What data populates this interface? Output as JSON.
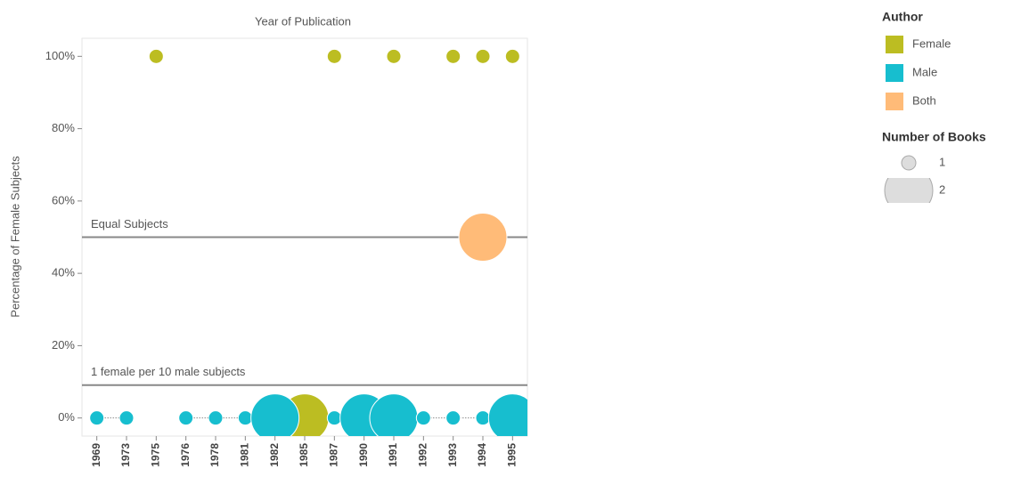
{
  "chart_data": {
    "type": "scatter",
    "title": "Year of Publication",
    "y_label": "Percentage of Female Subjects",
    "categories": [
      "1969",
      "1973",
      "1975",
      "1976",
      "1978",
      "1981",
      "1982",
      "1985",
      "1987",
      "1990",
      "1991",
      "1992",
      "1993",
      "1994",
      "1995"
    ],
    "series": [
      {
        "name": "Female",
        "color": "#bcbd22",
        "values": [
          null,
          null,
          100,
          null,
          null,
          null,
          null,
          0,
          100,
          null,
          100,
          null,
          100,
          100,
          100
        ],
        "sizes": [
          null,
          null,
          1,
          null,
          null,
          null,
          null,
          2,
          1,
          null,
          1,
          null,
          1,
          1,
          1
        ]
      },
      {
        "name": "Male",
        "color": "#17becf",
        "line": "dotted",
        "values": [
          0,
          0,
          null,
          0,
          0,
          0,
          0,
          null,
          0,
          0,
          0,
          0,
          0,
          0,
          0
        ],
        "sizes": [
          1,
          1,
          null,
          1,
          1,
          1,
          2,
          null,
          1,
          2,
          2,
          1,
          1,
          1,
          2
        ]
      },
      {
        "name": "Both",
        "color": "#ffbb78",
        "values": [
          null,
          null,
          null,
          null,
          null,
          null,
          null,
          null,
          null,
          null,
          null,
          null,
          null,
          50,
          null
        ],
        "sizes": [
          null,
          null,
          null,
          null,
          null,
          null,
          null,
          null,
          null,
          null,
          null,
          null,
          null,
          2,
          null
        ]
      }
    ],
    "ylim": [
      -5,
      105
    ],
    "yticks": [
      {
        "value": 0,
        "label": "0%"
      },
      {
        "value": 20,
        "label": "20%"
      },
      {
        "value": 40,
        "label": "40%"
      },
      {
        "value": 60,
        "label": "60%"
      },
      {
        "value": 80,
        "label": "80%"
      },
      {
        "value": 100,
        "label": "100%"
      }
    ],
    "reference_lines": [
      {
        "value": 50,
        "label": "Equal Subjects"
      },
      {
        "value": 9.09,
        "label": "1 female per 10 male subjects"
      }
    ],
    "legend_title": "Author",
    "size_legend": {
      "title": "Number of Books",
      "values": [
        1,
        2
      ]
    }
  }
}
